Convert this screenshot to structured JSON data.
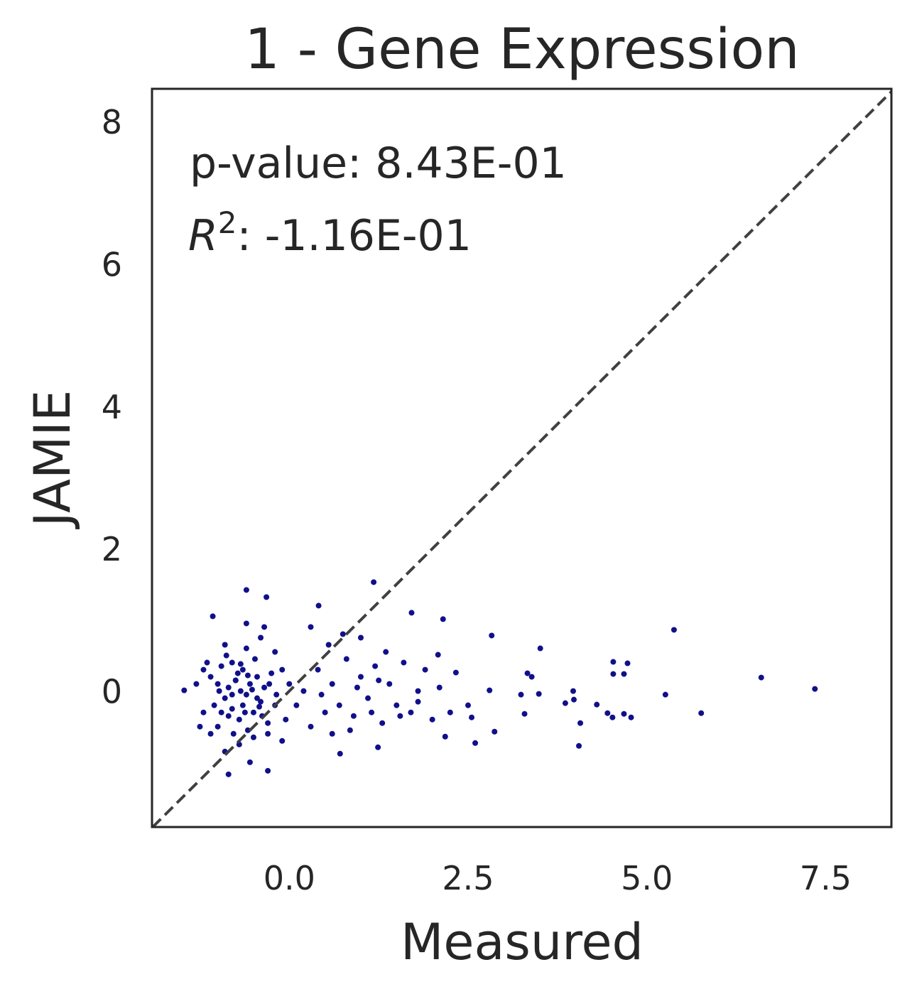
{
  "chart_data": {
    "type": "scatter",
    "title": "1 - Gene Expression",
    "x_label": "Measured",
    "y_label": "JAMIE",
    "annotations": {
      "p_value": "p-value: 8.43E-01",
      "r2": {
        "symbol": "R",
        "exponent": "2",
        "text": ": -1.16E-01"
      }
    },
    "color": "#10108a",
    "identity_line": true,
    "grid": false,
    "xlim": [
      -1.92,
      8.42
    ],
    "ylim": [
      -1.91,
      8.46
    ],
    "xticks": [
      {
        "value": 0,
        "label": "0.0"
      },
      2.5,
      {
        "value": 5,
        "label": "5.0"
      },
      7.5
    ],
    "yticks": [
      0,
      2,
      4,
      6,
      8
    ],
    "x": [
      7.35,
      6.6,
      5.38,
      5.76,
      5.26,
      4.78,
      4.68,
      4.53,
      4.73,
      4.53,
      4.68,
      4.52,
      4.45,
      4.3,
      4.05,
      4.07,
      3.97,
      3.98,
      3.86,
      3.51,
      3.49,
      3.39,
      3.33,
      3.29,
      3.24,
      2.83,
      2.8,
      2.87,
      2.6,
      2.55,
      2.5,
      2.15,
      2.33,
      2.08,
      2.18,
      1.71,
      1.18,
      1.24,
      0.71,
      -0.3,
      -0.85,
      -0.6,
      -0.32,
      0.41,
      -1.07,
      -1.47,
      -1.3,
      -1.2,
      -1.1,
      -1.0,
      -0.95,
      -0.9,
      -0.85,
      -0.8,
      -0.75,
      -0.7,
      -0.65,
      -0.6,
      -0.55,
      -0.5,
      -0.45,
      -0.4,
      -0.35,
      -0.3,
      -0.25,
      -0.2,
      -1.25,
      -1.15,
      -1.05,
      -0.98,
      -0.88,
      -0.78,
      -0.68,
      -0.58,
      -0.48,
      -0.38,
      -0.28,
      -0.18,
      -0.1,
      -0.05,
      0.0,
      0.1,
      0.2,
      -1.2,
      -1.1,
      -0.9,
      -0.8,
      -0.7,
      -0.6,
      -0.5,
      -0.4,
      -0.3,
      -0.2,
      -0.1,
      -0.6,
      -0.35,
      -0.9,
      -0.55,
      -0.75,
      -0.65,
      -0.85,
      -0.45,
      -1.0,
      -0.95,
      -0.72,
      -0.62,
      -0.52,
      -0.42,
      -0.8,
      -0.68,
      -0.58,
      0.3,
      0.4,
      0.5,
      0.6,
      0.7,
      0.8,
      0.9,
      1.0,
      1.1,
      1.2,
      1.3,
      1.4,
      1.5,
      1.6,
      1.7,
      1.8,
      1.9,
      2.0,
      0.55,
      0.75,
      1.0,
      0.3,
      0.6,
      0.85,
      1.15,
      1.35,
      1.8,
      2.1,
      0.45,
      0.95,
      1.25,
      1.55,
      2.25
    ],
    "y": [
      0.03,
      0.19,
      0.86,
      -0.31,
      -0.05,
      -0.37,
      -0.32,
      0.41,
      0.39,
      0.24,
      0.24,
      -0.37,
      -0.31,
      -0.19,
      -0.77,
      -0.45,
      0,
      -0.12,
      -0.17,
      0.6,
      -0.04,
      0.2,
      0.25,
      -0.32,
      -0.05,
      0.78,
      0.01,
      -0.57,
      -0.73,
      -0.37,
      -0.2,
      1.01,
      0.26,
      0.51,
      -0.64,
      1.1,
      1.53,
      -0.79,
      -0.88,
      -1.12,
      -1.17,
      1.42,
      1.32,
      1.2,
      1.05,
      0.01,
      0.1,
      -0.3,
      0.2,
      -0.5,
      0.35,
      -0.1,
      0.05,
      -0.25,
      0.15,
      -0.4,
      0.3,
      -0.05,
      0.1,
      -0.3,
      0.2,
      -0.15,
      0.05,
      -0.45,
      0.25,
      -0.2,
      -0.5,
      0.4,
      -0.2,
      0.0,
      0.5,
      -0.6,
      0.0,
      -0.55,
      0.45,
      -0.35,
      0.1,
      -0.05,
      0.3,
      -0.4,
      0.1,
      -0.2,
      0.0,
      0.3,
      -0.6,
      0.65,
      0.4,
      -0.75,
      0.6,
      -0.65,
      0.75,
      -0.6,
      0.55,
      -0.7,
      0.95,
      0.9,
      -0.85,
      -1.0,
      0.15,
      -0.2,
      -0.35,
      -0.1,
      0.1,
      -0.3,
      0.25,
      -0.3,
      0.02,
      -0.22,
      -0.05,
      0.38,
      0.22,
      -0.5,
      0.3,
      -0.3,
      0.1,
      -0.2,
      0.45,
      -0.35,
      0.2,
      -0.1,
      0.35,
      -0.45,
      0.1,
      -0.2,
      0.4,
      -0.3,
      0.0,
      0.3,
      -0.4,
      0.65,
      0.8,
      0.75,
      0.9,
      -0.6,
      -0.55,
      -0.3,
      0.55,
      -0.15,
      0.05,
      -0.05,
      0.05,
      0.15,
      -0.35,
      -0.3
    ]
  }
}
